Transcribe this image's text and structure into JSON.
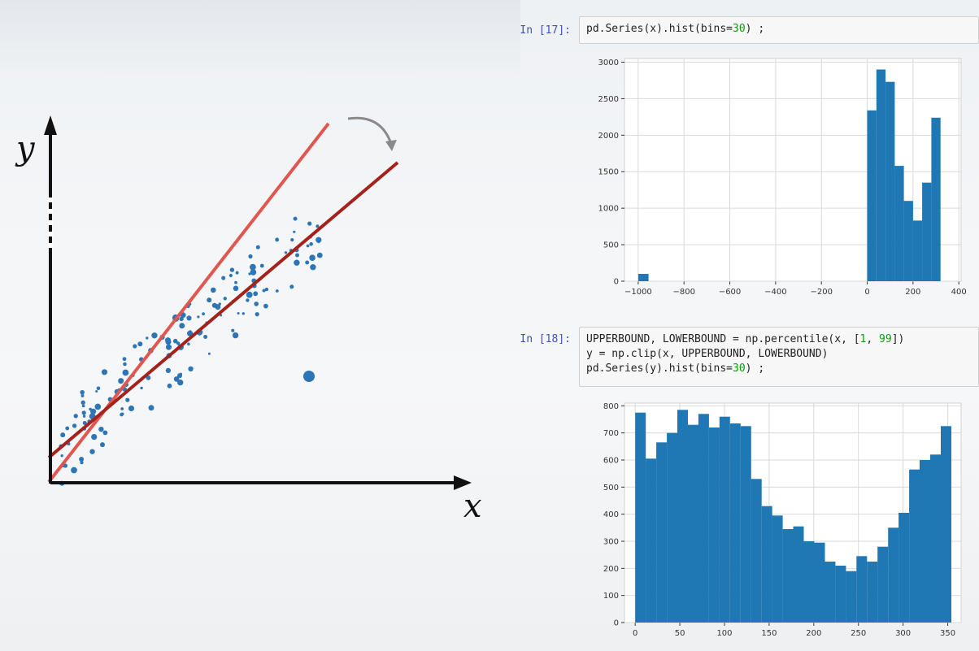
{
  "diagram": {
    "y_label": "y",
    "x_label": "x",
    "colors": {
      "axis": "#111111",
      "line_steep": "#e0574f",
      "line_fit": "#a3221c",
      "points": "#2e75b6",
      "arrow": "#8a8a8a"
    }
  },
  "notebook": {
    "cell17": {
      "prompt": "In [17]:",
      "code": [
        "pd.Series(x).hist(bins=",
        "30",
        ") ;"
      ]
    },
    "cell18": {
      "prompt": "In [18]:",
      "line1": [
        "UPPERBOUND, LOWERBOUND = np.percentile(x, [",
        "1",
        ", ",
        "99",
        "])"
      ],
      "line2": "y = np.clip(x, UPPERBOUND, LOWERBOUND)",
      "line3": [
        "pd.Series(y).hist(bins=",
        "30",
        ") ;"
      ]
    }
  },
  "chart_data": [
    {
      "type": "bar",
      "title": "",
      "xlim": [
        -1060,
        410
      ],
      "ylim": [
        0,
        3050
      ],
      "xticks": [
        -1000,
        -800,
        -600,
        -400,
        -200,
        0,
        200,
        400
      ],
      "yticks": [
        0,
        500,
        1000,
        1500,
        2000,
        2500,
        3000
      ],
      "grid": true,
      "color": "#1f77b4",
      "bins": [
        {
          "x0": -1000,
          "x1": -955,
          "value": 100
        },
        {
          "x0": 0,
          "x1": 40,
          "value": 2340
        },
        {
          "x0": 40,
          "x1": 80,
          "value": 2900
        },
        {
          "x0": 80,
          "x1": 120,
          "value": 2730
        },
        {
          "x0": 120,
          "x1": 160,
          "value": 1580
        },
        {
          "x0": 160,
          "x1": 200,
          "value": 1100
        },
        {
          "x0": 200,
          "x1": 240,
          "value": 830
        },
        {
          "x0": 240,
          "x1": 280,
          "value": 1350
        },
        {
          "x0": 280,
          "x1": 320,
          "value": 2240
        }
      ]
    },
    {
      "type": "bar",
      "title": "",
      "xlim": [
        -12,
        365
      ],
      "ylim": [
        0,
        810
      ],
      "xticks": [
        0,
        50,
        100,
        150,
        200,
        250,
        300,
        350
      ],
      "yticks": [
        0,
        100,
        200,
        300,
        400,
        500,
        600,
        700,
        800
      ],
      "grid": true,
      "color": "#1f77b4",
      "bin_start": 0,
      "bin_width": 11.8,
      "values": [
        775,
        605,
        665,
        700,
        785,
        730,
        770,
        720,
        760,
        735,
        725,
        530,
        430,
        395,
        345,
        355,
        300,
        295,
        225,
        210,
        190,
        245,
        225,
        280,
        350,
        405,
        565,
        600,
        620,
        725
      ]
    }
  ]
}
